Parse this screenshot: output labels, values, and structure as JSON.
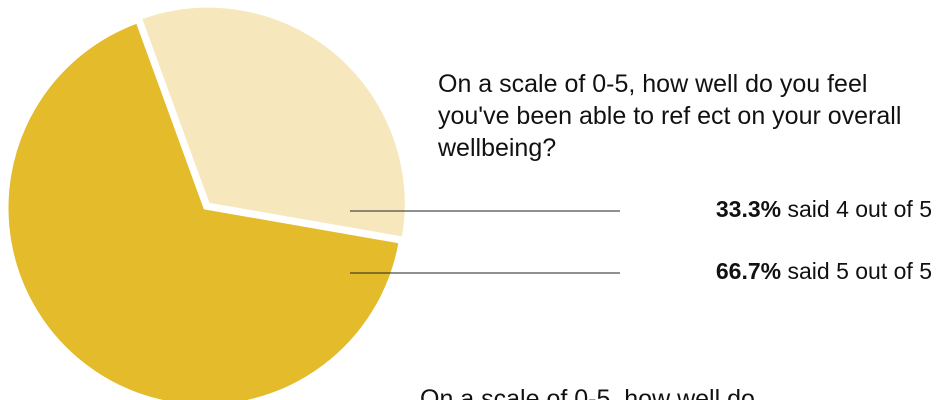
{
  "chart_data": {
    "type": "pie",
    "title": "On a scale of 0-5, how well do you feel you've been able to ref ect on your overall wellbeing?",
    "categories": [
      "said 4 out of 5",
      "said 5 out of 5"
    ],
    "values": [
      33.3,
      66.7
    ],
    "value_labels": [
      "33.3%",
      "66.7%"
    ],
    "colors": [
      "#f6e8bc",
      "#e3bb2b"
    ],
    "annotation": "On a scale of 0-5, how well do"
  }
}
